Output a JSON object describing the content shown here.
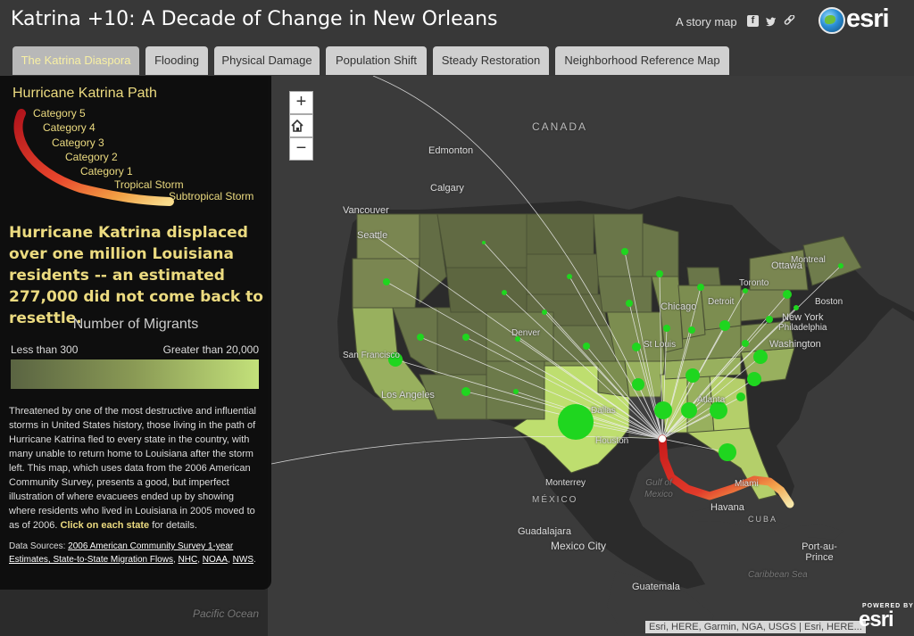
{
  "header": {
    "title": "Katrina +10: A Decade of Change in New Orleans",
    "story_map": "A story map",
    "share_icons": [
      "facebook-icon",
      "twitter-icon",
      "link-icon"
    ],
    "logo": "esri"
  },
  "tabs": [
    {
      "label": "The Katrina Diaspora",
      "active": true
    },
    {
      "label": "Flooding"
    },
    {
      "label": "Physical Damage"
    },
    {
      "label": "Population Shift"
    },
    {
      "label": "Steady Restoration"
    },
    {
      "label": "Neighborhood Reference Map"
    }
  ],
  "panel": {
    "legend_title": "Hurricane Katrina Path",
    "categories": [
      "Category 5",
      "Category 4",
      "Category 3",
      "Category 2",
      "Category 1",
      "Tropical Storm",
      "Subtropical Storm"
    ],
    "headline": "Hurricane Katrina displaced over one million Louisiana residents -- an estimated 277,000 did not come back to resettle.",
    "migrants_title": "Number of Migrants",
    "migrants_low": "Less than 300",
    "migrants_high": "Greater than 20,000",
    "body": "Threatened by one of the most destructive and influential storms in United States history, those living in the path of Hurricane Katrina fled to every state in the country, with many unable to return home to Louisiana after the storm left. This map, which uses data from the 2006 American Community Survey, presents a good, but imperfect illustration of where evacuees ended up by showing where residents who lived in Louisiana in 2005 moved to as of 2006.",
    "body_cta": "Click on each state",
    "body_tail": "for details.",
    "sources_label": "Data Sources:",
    "sources": [
      "2006 American Community Survey 1-year Estimates, State-to-State Migration Flows",
      "NHC",
      "NOAA",
      "NWS"
    ]
  },
  "map": {
    "zoom_in": "+",
    "home_icon": "home-icon",
    "zoom_out": "−",
    "labels": {
      "canada": "CANADA",
      "edmonton": "Edmonton",
      "calgary": "Calgary",
      "vancouver": "Vancouver",
      "seattle": "Seattle",
      "ottawa": "Ottawa",
      "montreal": "Montreal",
      "toronto": "Toronto",
      "boston": "Boston",
      "new_york": "New York",
      "philadelphia": "Philadelphia",
      "washington": "Washington",
      "detroit": "Detroit",
      "chicago": "Chicago",
      "st_louis": "St Louis",
      "denver": "Denver",
      "san_francisco": "San Francisco",
      "los_angeles": "Los Angeles",
      "dallas": "Dallas",
      "houston": "Houston",
      "atlanta": "Atlanta",
      "miami": "Miami",
      "monterrey": "Monterrey",
      "mexico": "MÉXICO",
      "gulf_of_mexico": "Gulf of Mexico",
      "havana": "Havana",
      "cuba": "CUBA",
      "guadalajara": "Guadalajara",
      "mexico_city": "Mexico City",
      "port_au_prince": "Port-au-Prince",
      "caribbean_sea": "Caribbean Sea",
      "guatemala": "Guatemala",
      "pacific_ocean": "Pacific Ocean"
    },
    "attribution": "Esri, HERE, Garmin, NGA, USGS | Esri, HERE",
    "attribution_tail": "...",
    "powered_by": "POWERED BY",
    "powered_logo": "esri"
  }
}
